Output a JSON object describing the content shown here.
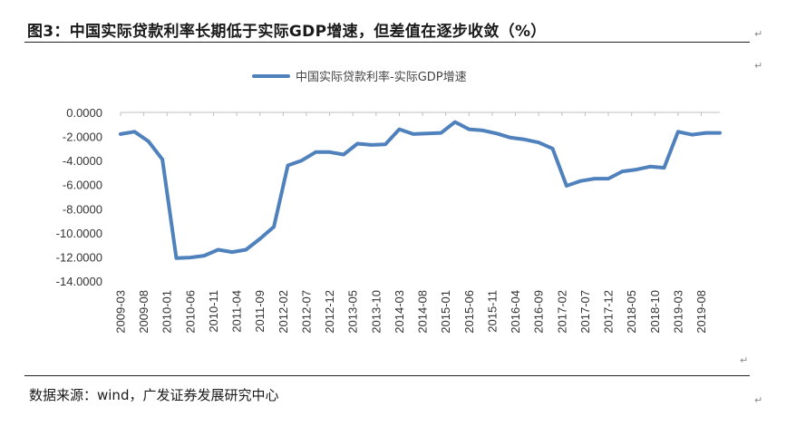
{
  "figure": {
    "title": "图3：中国实际贷款利率长期低于实际GDP增速，但差值在逐步收敛（%）",
    "source": "数据来源：wind，广发证券发展研究中心",
    "paragraph_mark": "↵"
  },
  "chart_data": {
    "type": "line",
    "legend_position": "top-center",
    "grid": false,
    "series": [
      {
        "name": "中国实际贷款利率-实际GDP增速",
        "color": "#4f81bd",
        "values": [
          -1.8,
          -1.6,
          -2.4,
          -3.9,
          -12.1,
          -12.05,
          -11.9,
          -11.4,
          -11.6,
          -11.4,
          -10.5,
          -9.5,
          -4.4,
          -4.0,
          -3.3,
          -3.3,
          -3.5,
          -2.6,
          -2.7,
          -2.65,
          -1.4,
          -1.8,
          -1.75,
          -1.7,
          -0.8,
          -1.4,
          -1.5,
          -1.75,
          -2.1,
          -2.25,
          -2.5,
          -3.0,
          -6.1,
          -5.7,
          -5.5,
          -5.5,
          -4.9,
          -4.75,
          -4.5,
          -4.6,
          -1.6,
          -1.85,
          -1.7,
          -1.7
        ]
      }
    ],
    "x": [
      "2009-03",
      "2009-06",
      "2009-09",
      "2009-12",
      "2010-03",
      "2010-06",
      "2010-09",
      "2010-12",
      "2011-03",
      "2011-06",
      "2011-09",
      "2011-12",
      "2012-03",
      "2012-06",
      "2012-09",
      "2012-12",
      "2013-03",
      "2013-06",
      "2013-09",
      "2013-12",
      "2014-03",
      "2014-06",
      "2014-09",
      "2014-12",
      "2015-03",
      "2015-06",
      "2015-09",
      "2015-12",
      "2016-03",
      "2016-06",
      "2016-09",
      "2016-12",
      "2017-03",
      "2017-06",
      "2017-09",
      "2017-12",
      "2018-03",
      "2018-06",
      "2018-09",
      "2018-12",
      "2019-03",
      "2019-06",
      "2019-09",
      "2019-12"
    ],
    "x_tick_labels": [
      "2009-03",
      "2009-08",
      "2010-01",
      "2010-06",
      "2010-11",
      "2011-04",
      "2011-09",
      "2012-02",
      "2012-07",
      "2012-12",
      "2013-05",
      "2013-10",
      "2014-03",
      "2014-08",
      "2015-01",
      "2015-06",
      "2015-11",
      "2016-04",
      "2016-09",
      "2017-02",
      "2017-07",
      "2017-12",
      "2018-05",
      "2018-10",
      "2019-03",
      "2019-08"
    ],
    "y_ticks": [
      "0.0000",
      "-2.0000",
      "-4.0000",
      "-6.0000",
      "-8.0000",
      "-10.0000",
      "-12.0000",
      "-14.0000"
    ],
    "ylim": [
      -14,
      0
    ]
  }
}
